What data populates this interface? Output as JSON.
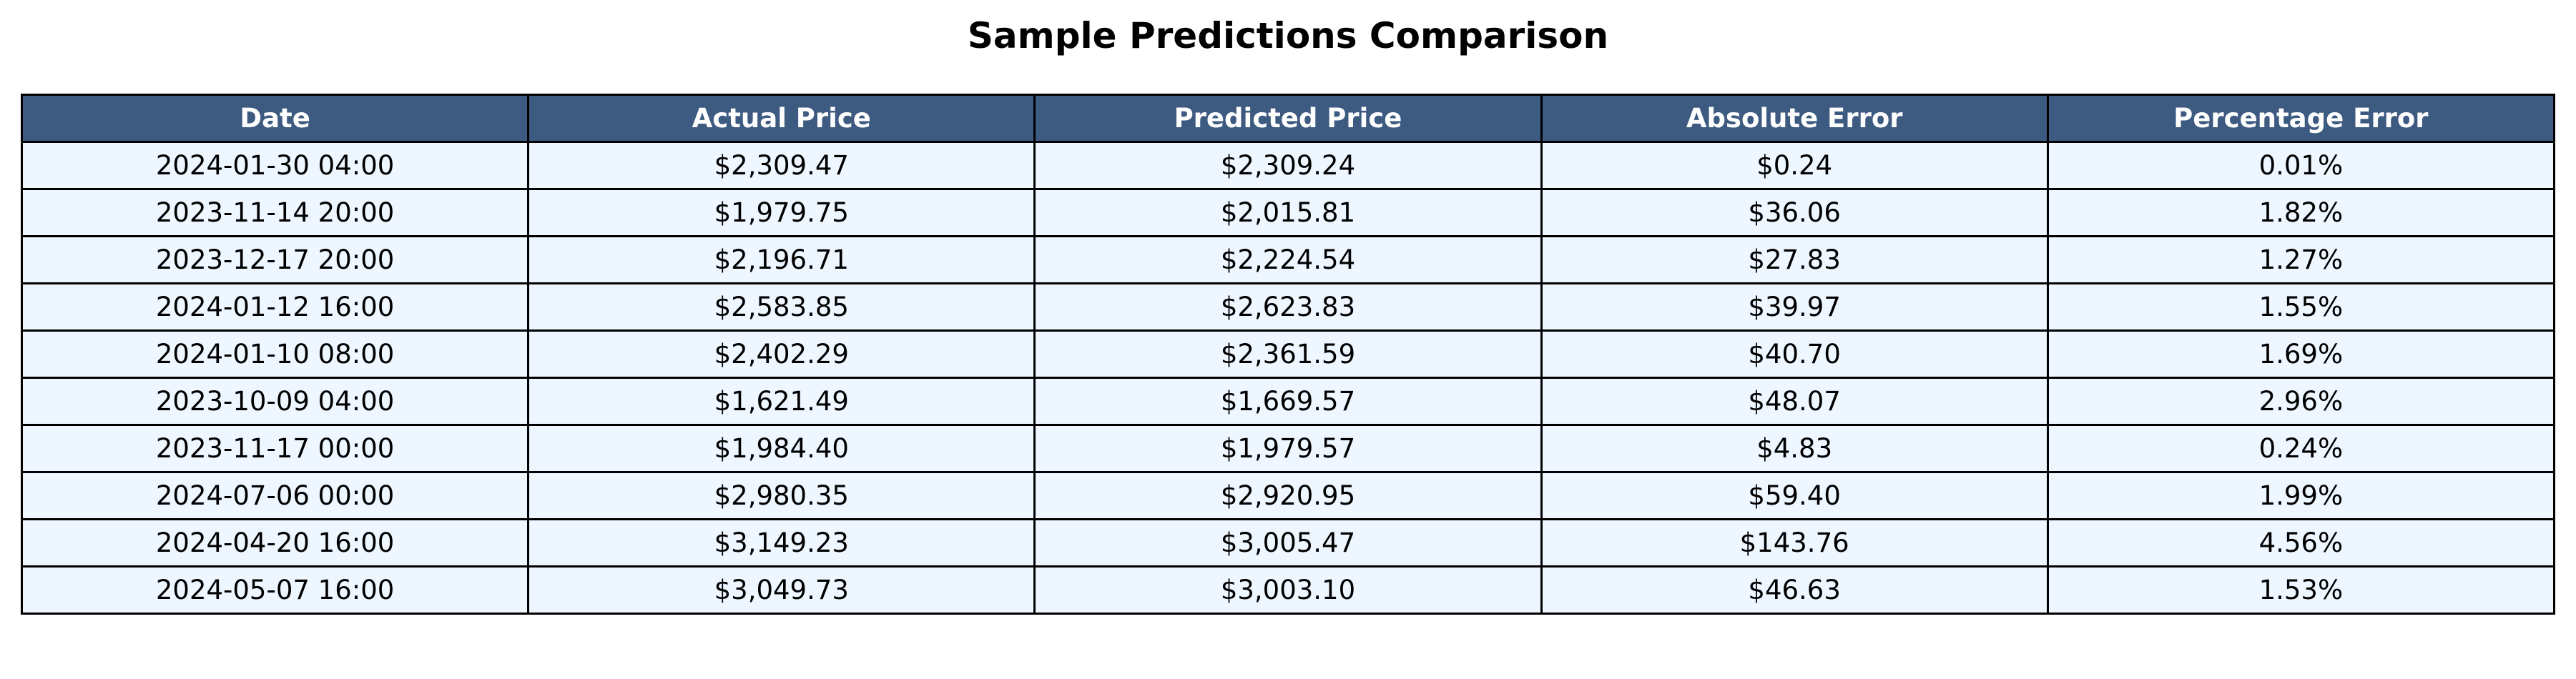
{
  "chart_data": {
    "type": "table",
    "title": "Sample Predictions Comparison",
    "columns": [
      "Date",
      "Actual Price",
      "Predicted Price",
      "Absolute Error",
      "Percentage Error"
    ],
    "rows": [
      [
        "2024-01-30 04:00",
        "$2,309.47",
        "$2,309.24",
        "$0.24",
        "0.01%"
      ],
      [
        "2023-11-14 20:00",
        "$1,979.75",
        "$2,015.81",
        "$36.06",
        "1.82%"
      ],
      [
        "2023-12-17 20:00",
        "$2,196.71",
        "$2,224.54",
        "$27.83",
        "1.27%"
      ],
      [
        "2024-01-12 16:00",
        "$2,583.85",
        "$2,623.83",
        "$39.97",
        "1.55%"
      ],
      [
        "2024-01-10 08:00",
        "$2,402.29",
        "$2,361.59",
        "$40.70",
        "1.69%"
      ],
      [
        "2023-10-09 04:00",
        "$1,621.49",
        "$1,669.57",
        "$48.07",
        "2.96%"
      ],
      [
        "2023-11-17 00:00",
        "$1,984.40",
        "$1,979.57",
        "$4.83",
        "0.24%"
      ],
      [
        "2024-07-06 00:00",
        "$2,980.35",
        "$2,920.95",
        "$59.40",
        "1.99%"
      ],
      [
        "2024-04-20 16:00",
        "$3,149.23",
        "$3,005.47",
        "$143.76",
        "4.56%"
      ],
      [
        "2024-05-07 16:00",
        "$3,049.73",
        "$3,003.10",
        "$46.63",
        "1.53%"
      ]
    ],
    "header_color": "#3d5a80",
    "header_text_color": "#ffffff",
    "cell_color": "#eef6ff",
    "border_color": "#000000"
  }
}
